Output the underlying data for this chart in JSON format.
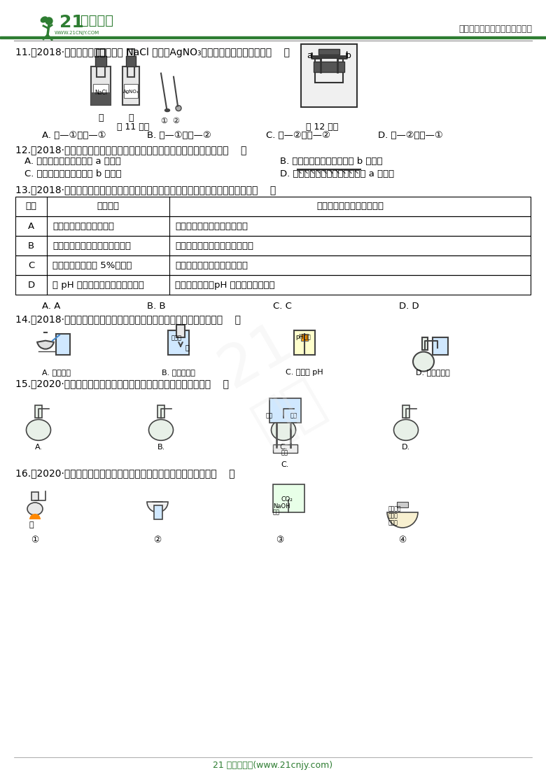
{
  "bg_color": "#ffffff",
  "header_left": "21世纪教育",
  "header_right": "中小学教育资源及组卷应用平台",
  "footer": "21 世纪教育网(www.21cnjy.com)",
  "q11_text": "11.（2018·绍兴）从试剂瓶中取用 NaCl 固体、AgNO₃溶液，需要用到的器材是（    ）",
  "q11_label1": "第 11 题图",
  "q11_label2": "第 12 题图",
  "q11_opts": [
    "A. 甲—①，乙—①",
    "B. 甲—①，乙—②",
    "C. 甲—②，乙—②",
    "D. 甲—②，乙—①"
  ],
  "q12_text": "12.（2018·湖州）如图所示的装置有很多用途，下列使用方法不正确的是（    ）",
  "q12_opts": [
    "A. 排水法收集氧气时，由 a 口进气",
    "B. 排空气法收集氢气时，由 b 口进气",
    "C. 排水法收集氢气时，由 b 口进气",
    "D. 排空气法收集二氧化碳时，由 a 口进气"
  ],
  "q13_text": "13.（2018·金华）用所给实验器材（规格和数量不限），就能顺利完成相应实验的是（    ）",
  "table_headers": [
    "选项",
    "相应实验",
    "实验器材（省略夹持装置）"
  ],
  "table_rows": [
    [
      "A",
      "硫酸铜晶体的制备和生长",
      "烧杯、玻璃棒、蒸发皿、量筒"
    ],
    [
      "B",
      "分离氯化钾和二氧化锰的混合物",
      "烧杯、玻璃棒、胶头滴管、滤纸"
    ],
    [
      "C",
      "用固体氯化钠配制 5%的溶液",
      "烧杯、玻璃、胶头滴管、量筒"
    ],
    [
      "D",
      "用 pH 试纸测定溶液的酸碱性强弱",
      "烧杯、玻璃棒、pH 试纸、标准比色卡"
    ]
  ],
  "q13_opts": [
    "A. A",
    "B. B",
    "C. C",
    "D. D"
  ],
  "q14_text": "14.（2018·衢州）规范操作是科学实验成功的关键，下列操作正确的是（    ）",
  "q14_opts": [
    "A. 倾倒液体",
    "B. 稀释浓硫酸",
    "C. 测液体 pH",
    "D. 检查气密性"
  ],
  "q15_text": "15.（2020·富阳模拟）下列教材实验，不需要检查装置气密性的是（    ）",
  "q15_opts": [
    "A.",
    "B.",
    "C.",
    "D."
  ],
  "q16_text": "16.（2020·定海模拟）下列实验装置进行的相应实验，能实验目的是（    ）",
  "q16_labels": [
    "①",
    "②",
    "③",
    "④"
  ],
  "accent_color": "#2E7D32",
  "text_color": "#000000",
  "line_color": "#000000",
  "table_border": "#000000",
  "watermark_color": "#cccccc"
}
